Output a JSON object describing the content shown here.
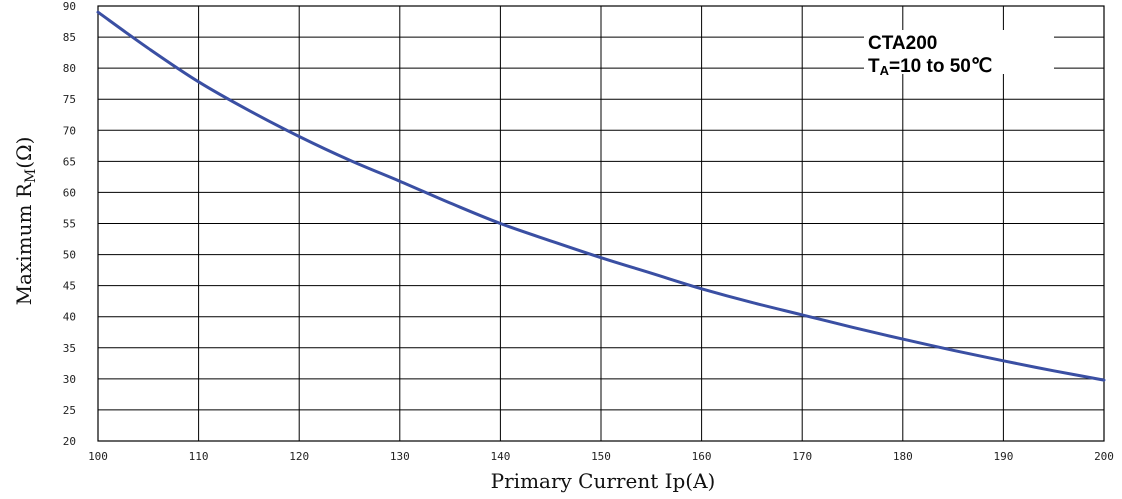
{
  "chart_data": {
    "type": "line",
    "title": "",
    "xlabel": "Primary Current Ip(A)",
    "ylabel_main": "Maximum R",
    "ylabel_sub": "M",
    "ylabel_unit": "(Ω)",
    "xlim": [
      100,
      200
    ],
    "ylim": [
      20,
      90
    ],
    "xticks": [
      100,
      110,
      120,
      130,
      140,
      150,
      160,
      170,
      180,
      190,
      200
    ],
    "yticks": [
      20,
      25,
      30,
      35,
      40,
      45,
      50,
      55,
      60,
      65,
      70,
      75,
      80,
      85,
      90
    ],
    "grid": true,
    "series": [
      {
        "color": "#3a4fa3",
        "x": [
          100,
          105,
          110,
          115,
          120,
          125,
          130,
          135,
          140,
          145,
          150,
          155,
          160,
          165,
          170,
          175,
          180,
          185,
          190,
          195,
          200
        ],
        "y": [
          89.0,
          83.2,
          77.8,
          73.2,
          69.0,
          65.2,
          61.8,
          58.3,
          55.0,
          52.2,
          49.5,
          47.0,
          44.5,
          42.3,
          40.3,
          38.3,
          36.4,
          34.6,
          32.9,
          31.3,
          29.8
        ]
      }
    ],
    "legend": {
      "line1": "CTA200",
      "line2_prefix": "T",
      "line2_sub": "A",
      "line2_suffix": "=10 to 50℃",
      "placement": "top-right"
    }
  }
}
